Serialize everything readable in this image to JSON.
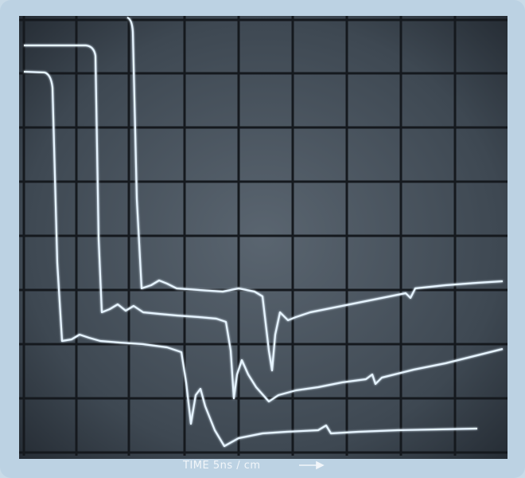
{
  "caption": "TIME  5ns / cm"
}
